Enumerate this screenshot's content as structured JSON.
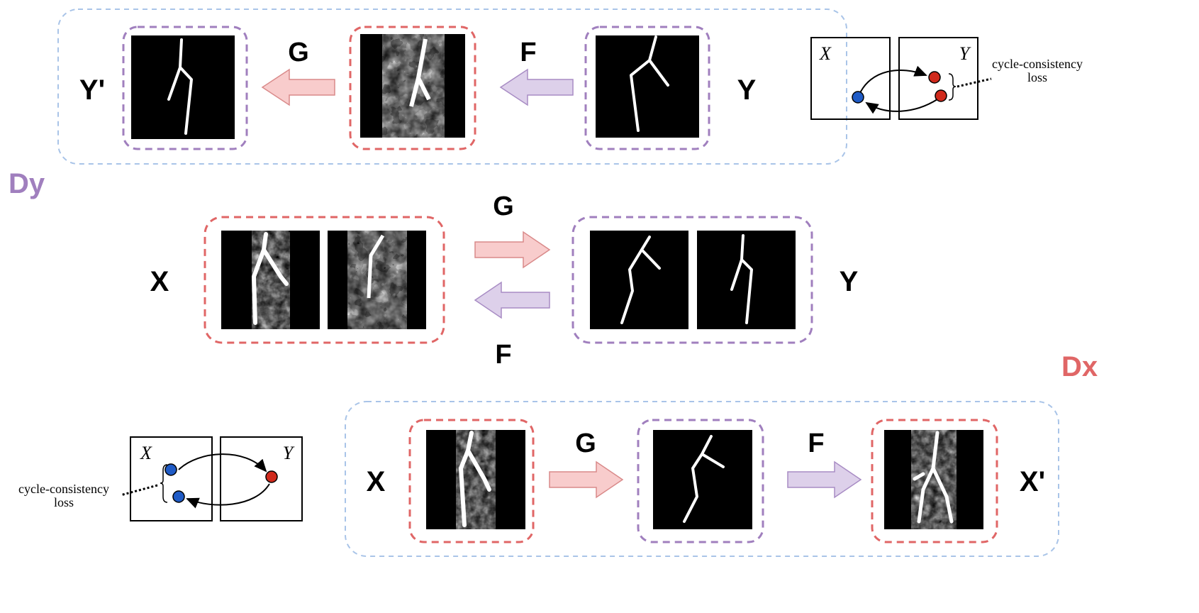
{
  "colors": {
    "red_box": "#e06666",
    "purple_box": "#a07fbe",
    "blue_panel": "#a9c4e8",
    "red_arrow_fill": "#f8cccc",
    "red_arrow_stroke": "#d98a8a",
    "purple_arrow_fill": "#ddd0ea",
    "purple_arrow_stroke": "#a88cc4",
    "dy_label": "#a07fbe",
    "dx_label": "#e06666",
    "dot_blue": "#1f5bc6",
    "dot_red": "#d02a1c"
  },
  "top_row": {
    "y_prime_label": "Y'",
    "g_label": "G",
    "f_label": "F",
    "y_label": "Y"
  },
  "discriminator_labels": {
    "dy": "Dy",
    "dx": "Dx"
  },
  "middle_row": {
    "x_label": "X",
    "y_label": "Y",
    "g_label": "G",
    "f_label": "F"
  },
  "bottom_row": {
    "x_label": "X",
    "g_label": "G",
    "f_label": "F",
    "x_prime_label": "X'"
  },
  "inset_top": {
    "x_label": "X",
    "y_label": "Y",
    "loss_line1": "cycle-consistency",
    "loss_line2": "loss"
  },
  "inset_bottom": {
    "x_label": "X",
    "y_label": "Y",
    "loss_line1": "cycle-consistency",
    "loss_line2": "loss"
  },
  "icons": [
    "arrow-left-icon",
    "arrow-right-icon",
    "vessel-mask-image",
    "vessel-angiogram-image"
  ]
}
